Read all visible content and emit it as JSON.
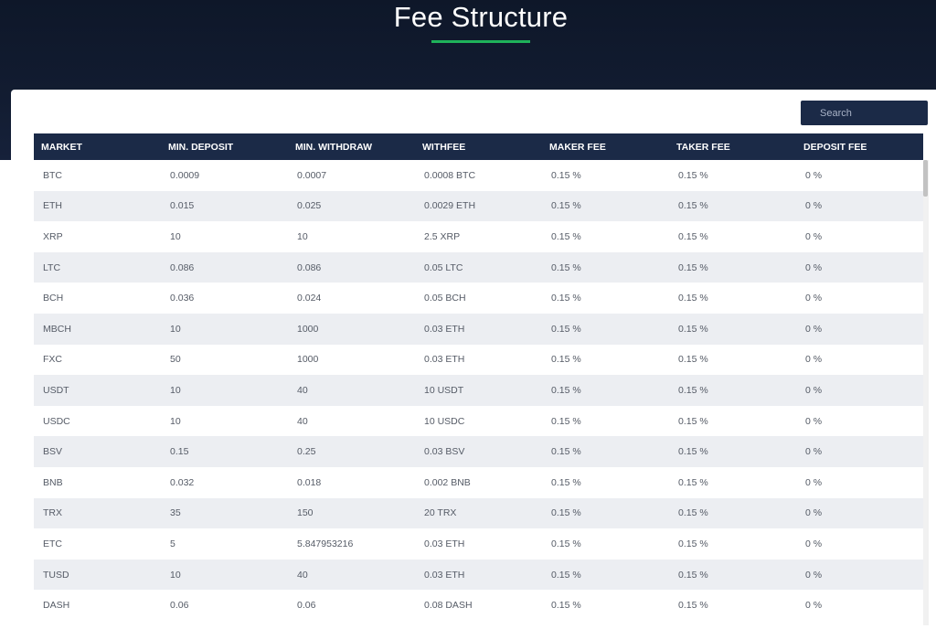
{
  "header": {
    "title": "Fee Structure"
  },
  "search": {
    "placeholder": "Search"
  },
  "table": {
    "columns": [
      "MARKET",
      "MIN. DEPOSIT",
      "MIN. WITHDRAW",
      "WITHFEE",
      "MAKER FEE",
      "TAKER FEE",
      "DEPOSIT FEE"
    ],
    "rows": [
      [
        "BTC",
        "0.0009",
        "0.0007",
        "0.0008 BTC",
        "0.15 %",
        "0.15 %",
        "0 %"
      ],
      [
        "ETH",
        "0.015",
        "0.025",
        "0.0029 ETH",
        "0.15 %",
        "0.15 %",
        "0 %"
      ],
      [
        "XRP",
        "10",
        "10",
        "2.5 XRP",
        "0.15 %",
        "0.15 %",
        "0 %"
      ],
      [
        "LTC",
        "0.086",
        "0.086",
        "0.05 LTC",
        "0.15 %",
        "0.15 %",
        "0 %"
      ],
      [
        "BCH",
        "0.036",
        "0.024",
        "0.05 BCH",
        "0.15 %",
        "0.15 %",
        "0 %"
      ],
      [
        "MBCH",
        "10",
        "1000",
        "0.03 ETH",
        "0.15 %",
        "0.15 %",
        "0 %"
      ],
      [
        "FXC",
        "50",
        "1000",
        "0.03 ETH",
        "0.15 %",
        "0.15 %",
        "0 %"
      ],
      [
        "USDT",
        "10",
        "40",
        "10 USDT",
        "0.15 %",
        "0.15 %",
        "0 %"
      ],
      [
        "USDC",
        "10",
        "40",
        "10 USDC",
        "0.15 %",
        "0.15 %",
        "0 %"
      ],
      [
        "BSV",
        "0.15",
        "0.25",
        "0.03 BSV",
        "0.15 %",
        "0.15 %",
        "0 %"
      ],
      [
        "BNB",
        "0.032",
        "0.018",
        "0.002 BNB",
        "0.15 %",
        "0.15 %",
        "0 %"
      ],
      [
        "TRX",
        "35",
        "150",
        "20 TRX",
        "0.15 %",
        "0.15 %",
        "0 %"
      ],
      [
        "ETC",
        "5",
        "5.847953216",
        "0.03 ETH",
        "0.15 %",
        "0.15 %",
        "0 %"
      ],
      [
        "TUSD",
        "10",
        "40",
        "0.03 ETH",
        "0.15 %",
        "0.15 %",
        "0 %"
      ],
      [
        "DASH",
        "0.06",
        "0.06",
        "0.08 DASH",
        "0.15 %",
        "0.15 %",
        "0 %"
      ]
    ]
  },
  "colors": {
    "hero_background": "#0e1729",
    "accent_green": "#1fb25a",
    "table_header": "#1b2a47",
    "stripe_row": "#eceef2"
  }
}
